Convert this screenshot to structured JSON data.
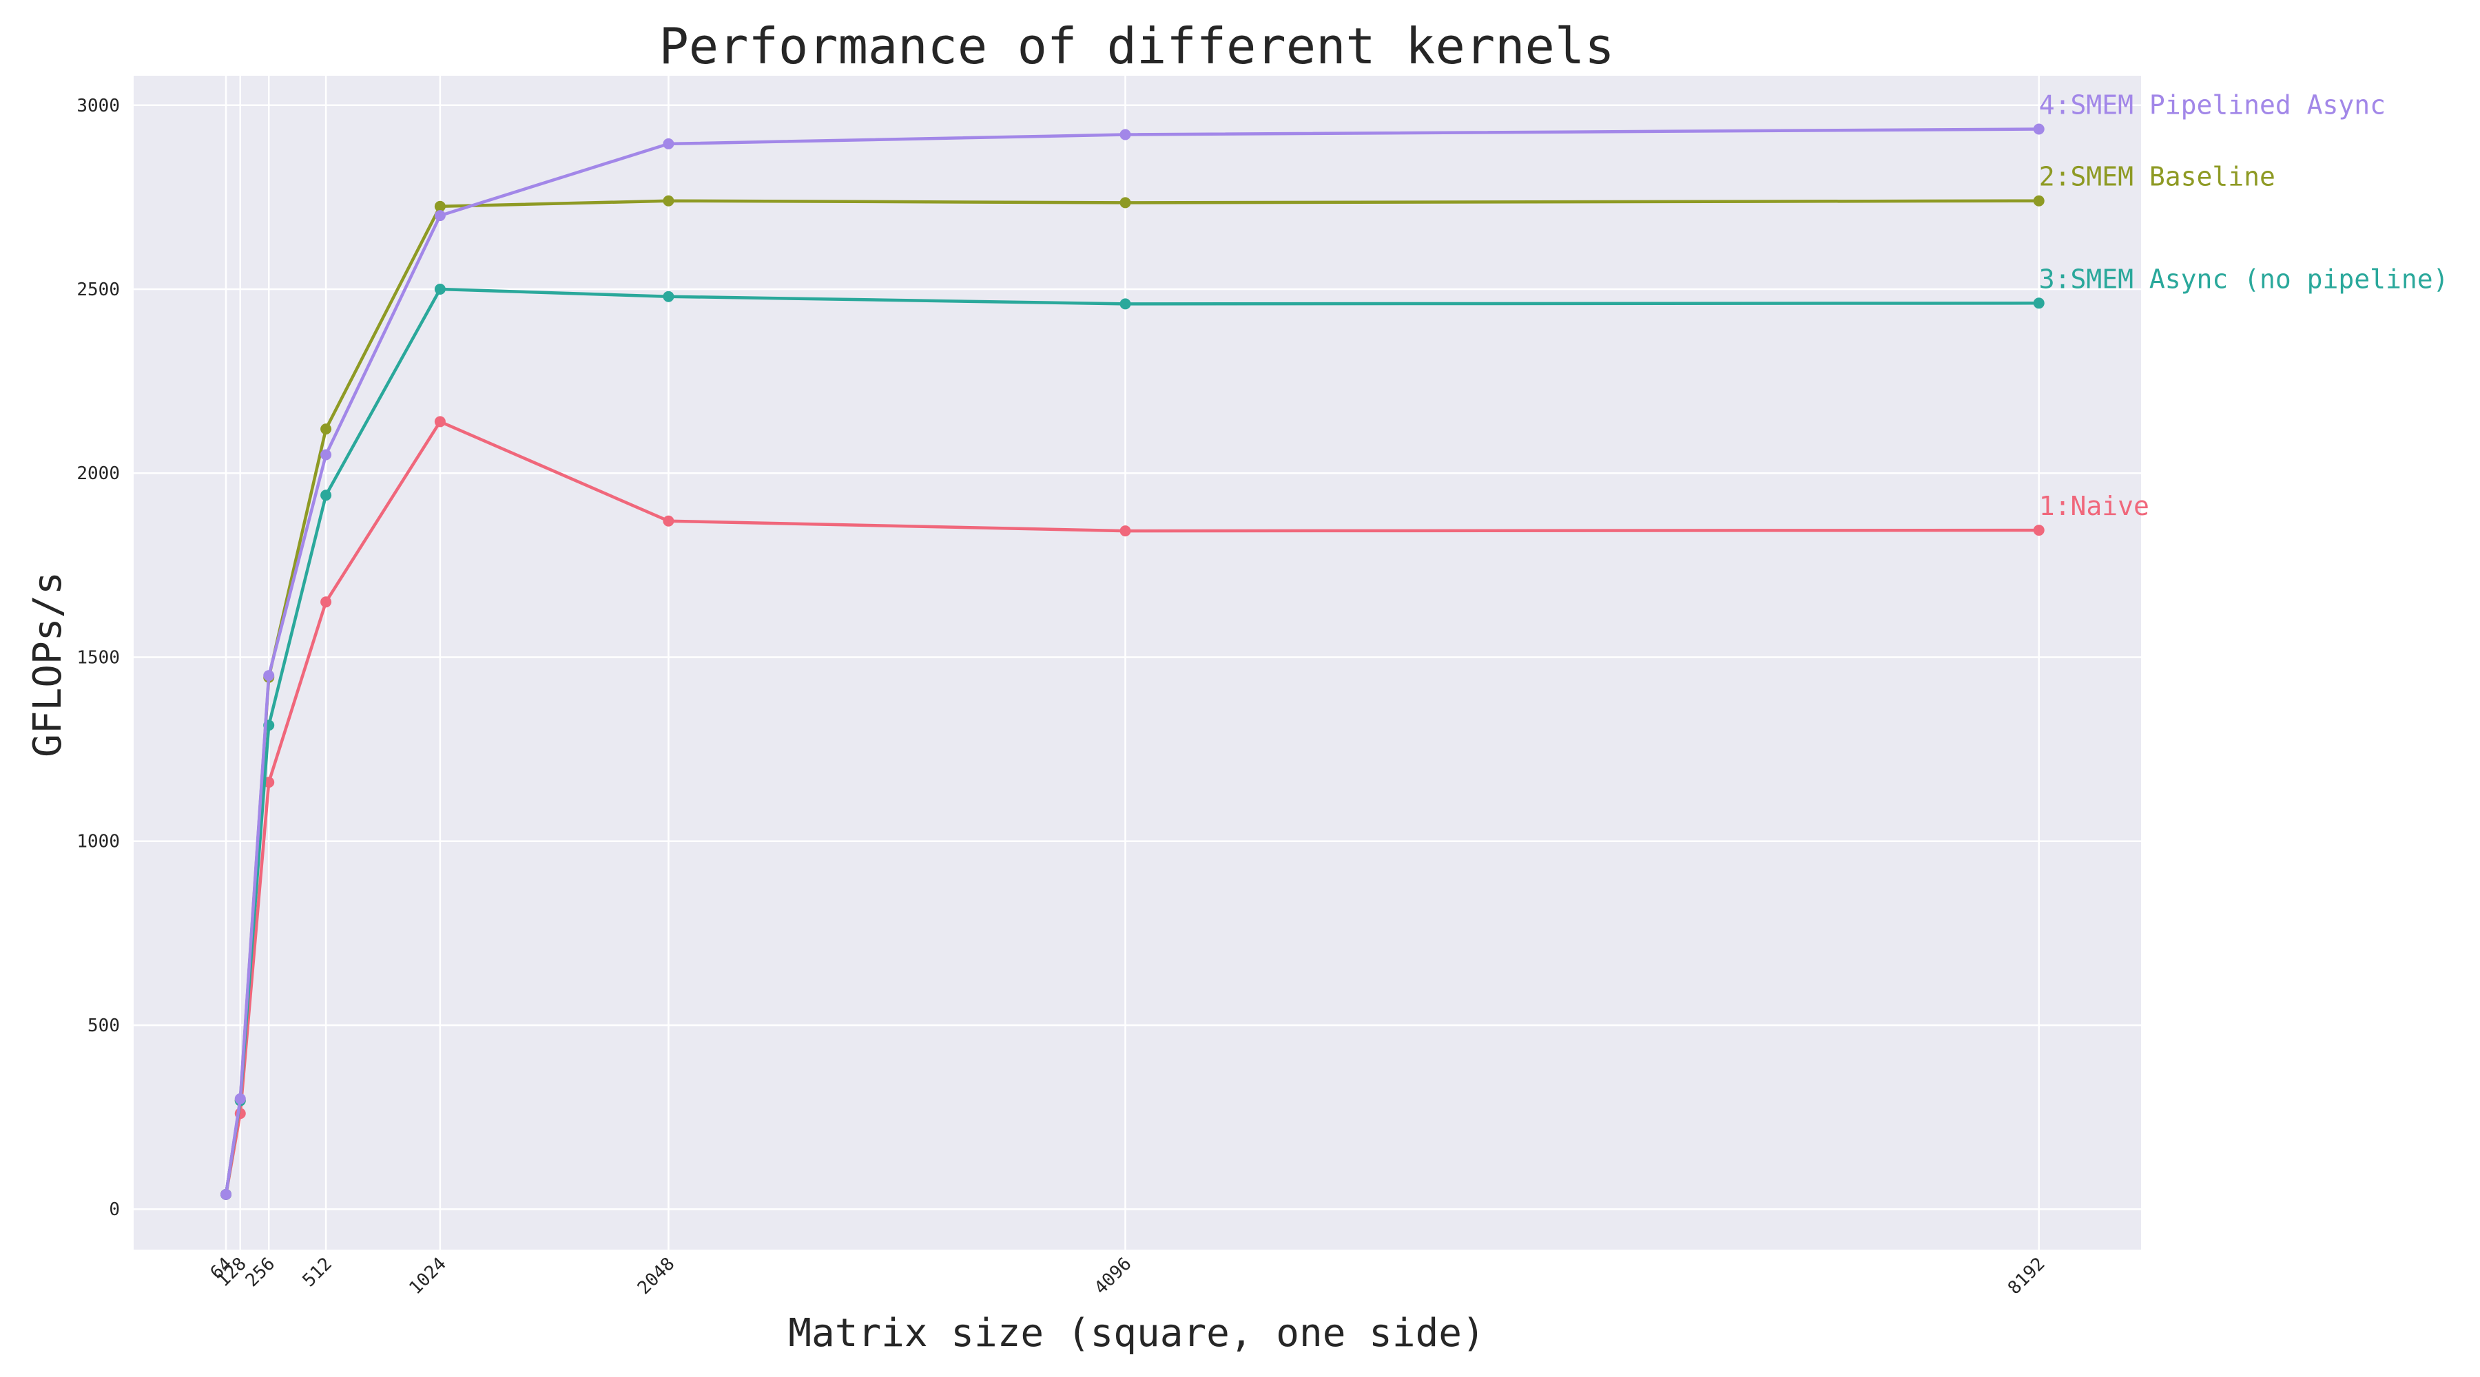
{
  "chart_data": {
    "type": "line",
    "title": "Performance of different kernels",
    "xlabel": "Matrix size (square, one side)",
    "ylabel": "GFLOPs/s",
    "x": [
      64,
      128,
      256,
      512,
      1024,
      2048,
      4096,
      8192
    ],
    "x_tick_labels": [
      "64",
      "128",
      "256",
      "512",
      "1024",
      "2048",
      "4096",
      "8192"
    ],
    "y_ticks": [
      0,
      500,
      1000,
      1500,
      2000,
      2500,
      3000
    ],
    "y_tick_labels": [
      "0",
      "500",
      "1000",
      "1500",
      "2000",
      "2500",
      "3000"
    ],
    "xlim": [
      -350,
      8650
    ],
    "ylim": [
      -110,
      3080
    ],
    "grid": true,
    "legend": "inline labels at right end of each series",
    "background_color": "#eaeaf2",
    "grid_color": "#ffffff",
    "series": [
      {
        "name": "1:Naive",
        "color": "#f0677b",
        "values": [
          40,
          260,
          1160,
          1650,
          2140,
          1870,
          1843,
          1845
        ]
      },
      {
        "name": "2:SMEM Baseline",
        "color": "#8e9a24",
        "values": [
          40,
          295,
          1445,
          2120,
          2725,
          2740,
          2735,
          2740
        ]
      },
      {
        "name": "3:SMEM Async (no pipeline)",
        "color": "#2aa89b",
        "values": [
          40,
          295,
          1315,
          1940,
          2500,
          2480,
          2460,
          2462
        ]
      },
      {
        "name": "4:SMEM Pipelined Async",
        "color": "#a287e8",
        "values": [
          40,
          300,
          1450,
          2050,
          2700,
          2895,
          2920,
          2935
        ]
      }
    ]
  }
}
